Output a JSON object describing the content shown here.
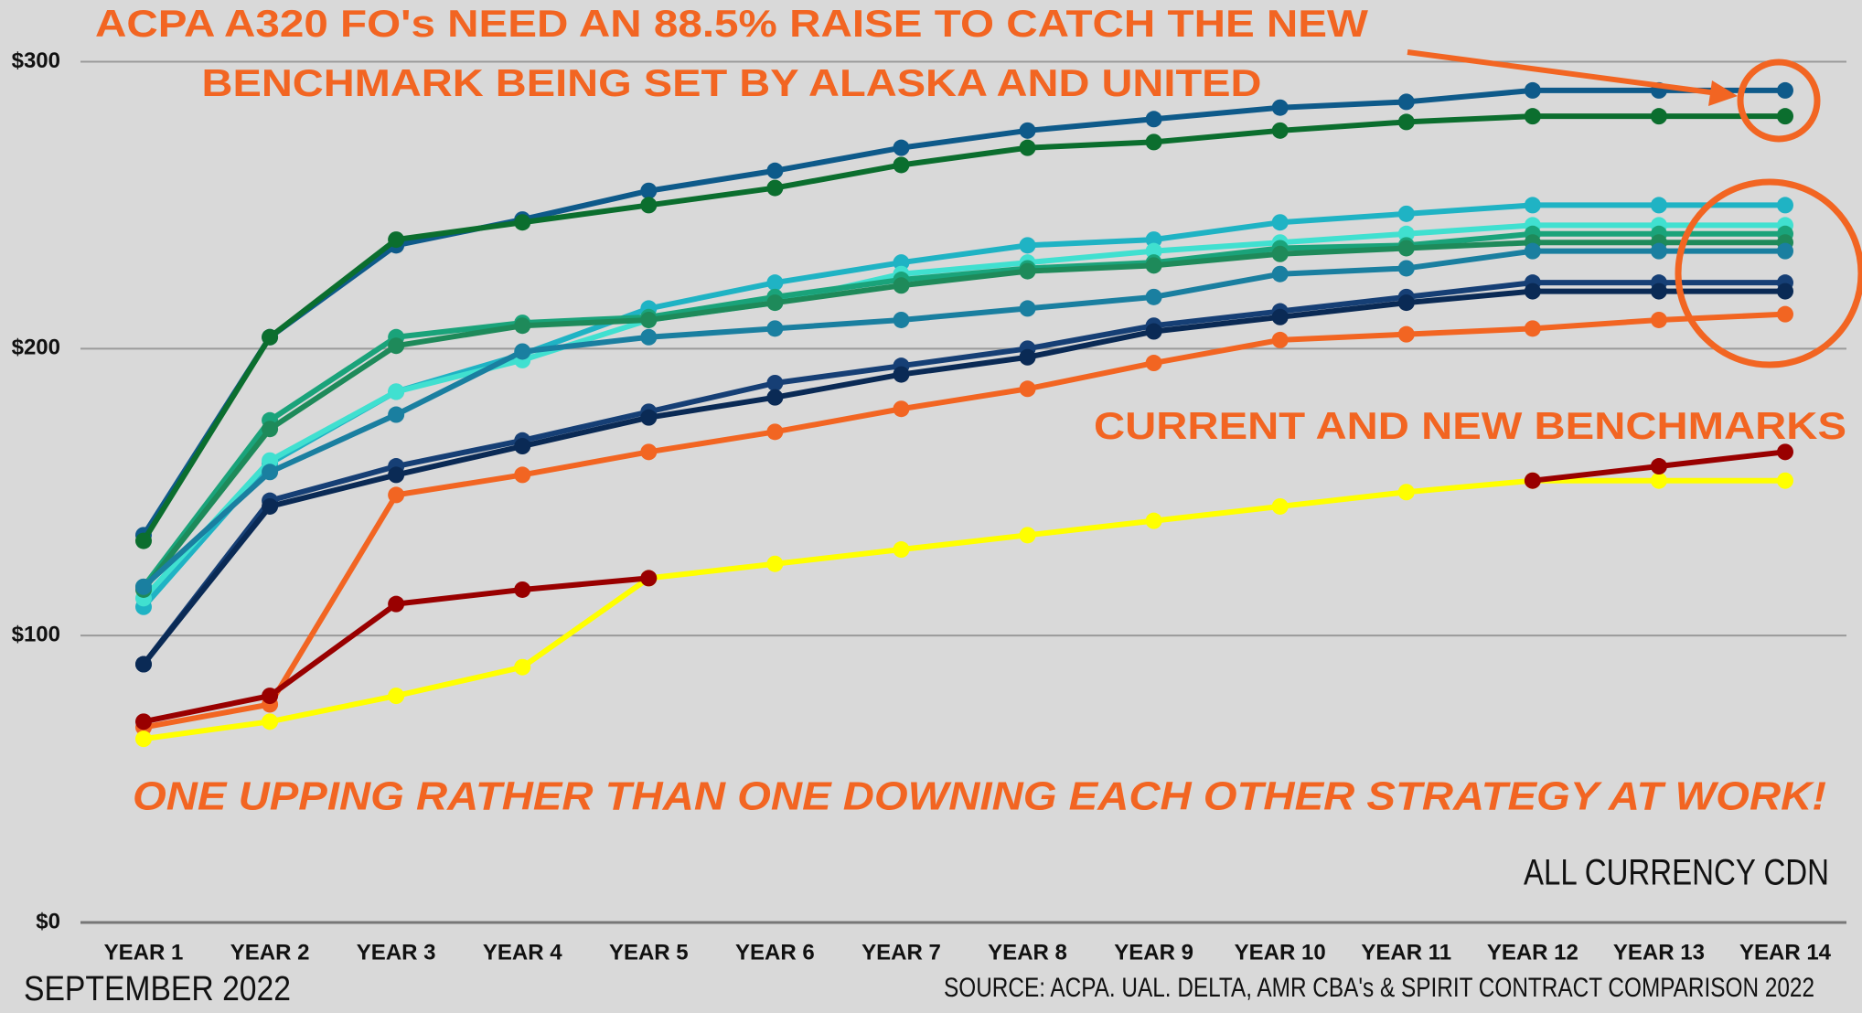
{
  "chart_data": {
    "type": "line",
    "title": [
      "ACPA A320 FO's NEED AN 88.5% RAISE TO CATCH THE NEW",
      "BENCHMARK BEING SET BY ALASKA AND UNITED"
    ],
    "annotations": [
      "CURRENT AND NEW BENCHMARKS",
      "ONE UPPING RATHER THAN ONE DOWNING EACH OTHER STRATEGY AT WORK!",
      "ALL CURRENCY CDN",
      "SEPTEMBER 2022",
      "SOURCE: ACPA. UAL. DELTA, AMR CBA's & SPIRIT CONTRACT COMPARISON 2022"
    ],
    "categories": [
      "YEAR 1",
      "YEAR 2",
      "YEAR 3",
      "YEAR 4",
      "YEAR 5",
      "YEAR 6",
      "YEAR 7",
      "YEAR 8",
      "YEAR 9",
      "YEAR 10",
      "YEAR 11",
      "YEAR 12",
      "YEAR 13",
      "YEAR 14"
    ],
    "ylim": [
      0,
      300
    ],
    "yticks": [
      {
        "value": 0,
        "label": "$0"
      },
      {
        "value": 100,
        "label": "$100"
      },
      {
        "value": 200,
        "label": "$200"
      },
      {
        "value": 300,
        "label": "$300"
      }
    ],
    "grid": true,
    "series": [
      {
        "color": "#0e5a8a",
        "values": [
          135,
          204,
          236,
          245,
          255,
          262,
          270,
          276,
          280,
          284,
          286,
          290,
          290,
          290
        ]
      },
      {
        "color": "#0b6e2e",
        "values": [
          133,
          204,
          238,
          244,
          250,
          256,
          264,
          270,
          272,
          276,
          279,
          281,
          281,
          281
        ]
      },
      {
        "color": "#1fb3c4",
        "values": [
          110,
          160,
          185,
          198,
          214,
          223,
          230,
          236,
          238,
          244,
          247,
          250,
          250,
          250
        ]
      },
      {
        "color": "#40e0d0",
        "values": [
          113,
          161,
          185,
          196,
          210,
          216,
          226,
          230,
          234,
          237,
          240,
          243,
          243,
          243
        ]
      },
      {
        "color": "#1aa37a",
        "values": [
          117,
          175,
          204,
          209,
          211,
          218,
          224,
          228,
          230,
          235,
          236,
          240,
          240,
          240
        ]
      },
      {
        "color": "#1e8a5a",
        "values": [
          116,
          172,
          201,
          208,
          210,
          216,
          222,
          227,
          229,
          233,
          235,
          237,
          237,
          237
        ]
      },
      {
        "color": "#1a7fa0",
        "values": [
          117,
          157,
          177,
          199,
          204,
          207,
          210,
          214,
          218,
          226,
          228,
          234,
          234,
          234
        ]
      },
      {
        "color": "#163f75",
        "values": [
          90,
          147,
          159,
          168,
          178,
          188,
          194,
          200,
          208,
          213,
          218,
          223,
          223,
          223
        ]
      },
      {
        "color": "#0a2a55",
        "values": [
          90,
          145,
          156,
          166,
          176,
          183,
          191,
          197,
          206,
          211,
          216,
          220,
          220,
          220
        ]
      },
      {
        "color": "#f26522",
        "values": [
          68,
          76,
          149,
          156,
          164,
          171,
          179,
          186,
          195,
          203,
          205,
          207,
          210,
          212
        ]
      },
      {
        "color": "#ffff00",
        "values": [
          64,
          70,
          79,
          89,
          120,
          125,
          130,
          135,
          140,
          145,
          150,
          154,
          154,
          154
        ]
      },
      {
        "color": "#990000",
        "values": [
          70,
          79,
          111,
          116,
          120,
          null,
          null,
          null,
          null,
          null,
          null,
          154,
          159,
          164
        ]
      }
    ]
  }
}
